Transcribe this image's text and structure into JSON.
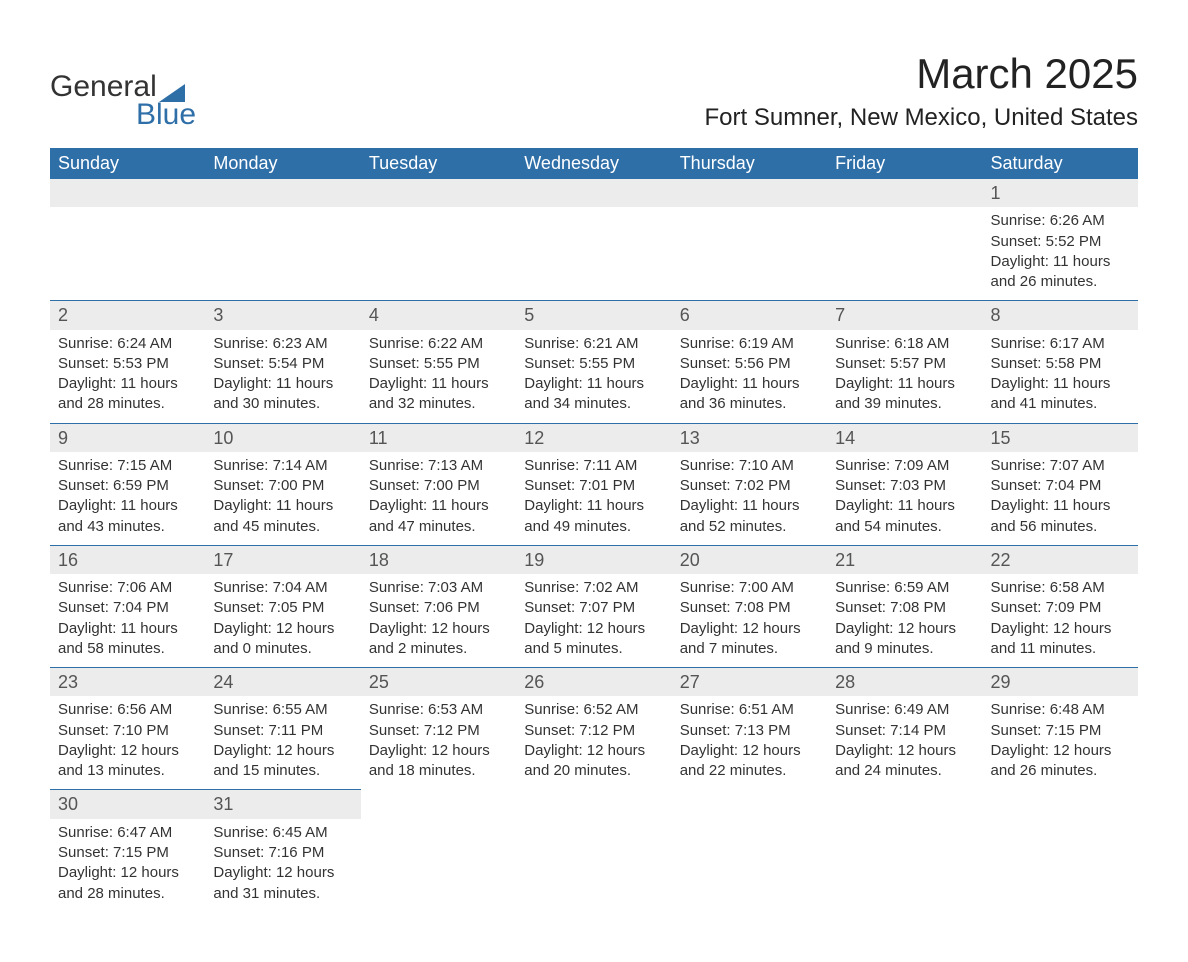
{
  "brand": {
    "name_part1": "General",
    "name_part2": "Blue",
    "accent_color": "#2f6fa8"
  },
  "title": "March 2025",
  "location": "Fort Sumner, New Mexico, United States",
  "weekdays": [
    "Sunday",
    "Monday",
    "Tuesday",
    "Wednesday",
    "Thursday",
    "Friday",
    "Saturday"
  ],
  "colors": {
    "header_bg": "#2f6fa8",
    "header_text": "#ffffff",
    "daynum_bg": "#ececec",
    "row_separator": "#2f6fa8",
    "body_text": "#333333",
    "background": "#ffffff"
  },
  "fonts": {
    "title_size_pt": 32,
    "location_size_pt": 18,
    "weekday_size_pt": 14,
    "cell_size_pt": 11
  },
  "weeks": [
    [
      null,
      null,
      null,
      null,
      null,
      null,
      {
        "d": "1",
        "sr": "Sunrise: 6:26 AM",
        "ss": "Sunset: 5:52 PM",
        "dl1": "Daylight: 11 hours",
        "dl2": "and 26 minutes."
      }
    ],
    [
      {
        "d": "2",
        "sr": "Sunrise: 6:24 AM",
        "ss": "Sunset: 5:53 PM",
        "dl1": "Daylight: 11 hours",
        "dl2": "and 28 minutes."
      },
      {
        "d": "3",
        "sr": "Sunrise: 6:23 AM",
        "ss": "Sunset: 5:54 PM",
        "dl1": "Daylight: 11 hours",
        "dl2": "and 30 minutes."
      },
      {
        "d": "4",
        "sr": "Sunrise: 6:22 AM",
        "ss": "Sunset: 5:55 PM",
        "dl1": "Daylight: 11 hours",
        "dl2": "and 32 minutes."
      },
      {
        "d": "5",
        "sr": "Sunrise: 6:21 AM",
        "ss": "Sunset: 5:55 PM",
        "dl1": "Daylight: 11 hours",
        "dl2": "and 34 minutes."
      },
      {
        "d": "6",
        "sr": "Sunrise: 6:19 AM",
        "ss": "Sunset: 5:56 PM",
        "dl1": "Daylight: 11 hours",
        "dl2": "and 36 minutes."
      },
      {
        "d": "7",
        "sr": "Sunrise: 6:18 AM",
        "ss": "Sunset: 5:57 PM",
        "dl1": "Daylight: 11 hours",
        "dl2": "and 39 minutes."
      },
      {
        "d": "8",
        "sr": "Sunrise: 6:17 AM",
        "ss": "Sunset: 5:58 PM",
        "dl1": "Daylight: 11 hours",
        "dl2": "and 41 minutes."
      }
    ],
    [
      {
        "d": "9",
        "sr": "Sunrise: 7:15 AM",
        "ss": "Sunset: 6:59 PM",
        "dl1": "Daylight: 11 hours",
        "dl2": "and 43 minutes."
      },
      {
        "d": "10",
        "sr": "Sunrise: 7:14 AM",
        "ss": "Sunset: 7:00 PM",
        "dl1": "Daylight: 11 hours",
        "dl2": "and 45 minutes."
      },
      {
        "d": "11",
        "sr": "Sunrise: 7:13 AM",
        "ss": "Sunset: 7:00 PM",
        "dl1": "Daylight: 11 hours",
        "dl2": "and 47 minutes."
      },
      {
        "d": "12",
        "sr": "Sunrise: 7:11 AM",
        "ss": "Sunset: 7:01 PM",
        "dl1": "Daylight: 11 hours",
        "dl2": "and 49 minutes."
      },
      {
        "d": "13",
        "sr": "Sunrise: 7:10 AM",
        "ss": "Sunset: 7:02 PM",
        "dl1": "Daylight: 11 hours",
        "dl2": "and 52 minutes."
      },
      {
        "d": "14",
        "sr": "Sunrise: 7:09 AM",
        "ss": "Sunset: 7:03 PM",
        "dl1": "Daylight: 11 hours",
        "dl2": "and 54 minutes."
      },
      {
        "d": "15",
        "sr": "Sunrise: 7:07 AM",
        "ss": "Sunset: 7:04 PM",
        "dl1": "Daylight: 11 hours",
        "dl2": "and 56 minutes."
      }
    ],
    [
      {
        "d": "16",
        "sr": "Sunrise: 7:06 AM",
        "ss": "Sunset: 7:04 PM",
        "dl1": "Daylight: 11 hours",
        "dl2": "and 58 minutes."
      },
      {
        "d": "17",
        "sr": "Sunrise: 7:04 AM",
        "ss": "Sunset: 7:05 PM",
        "dl1": "Daylight: 12 hours",
        "dl2": "and 0 minutes."
      },
      {
        "d": "18",
        "sr": "Sunrise: 7:03 AM",
        "ss": "Sunset: 7:06 PM",
        "dl1": "Daylight: 12 hours",
        "dl2": "and 2 minutes."
      },
      {
        "d": "19",
        "sr": "Sunrise: 7:02 AM",
        "ss": "Sunset: 7:07 PM",
        "dl1": "Daylight: 12 hours",
        "dl2": "and 5 minutes."
      },
      {
        "d": "20",
        "sr": "Sunrise: 7:00 AM",
        "ss": "Sunset: 7:08 PM",
        "dl1": "Daylight: 12 hours",
        "dl2": "and 7 minutes."
      },
      {
        "d": "21",
        "sr": "Sunrise: 6:59 AM",
        "ss": "Sunset: 7:08 PM",
        "dl1": "Daylight: 12 hours",
        "dl2": "and 9 minutes."
      },
      {
        "d": "22",
        "sr": "Sunrise: 6:58 AM",
        "ss": "Sunset: 7:09 PM",
        "dl1": "Daylight: 12 hours",
        "dl2": "and 11 minutes."
      }
    ],
    [
      {
        "d": "23",
        "sr": "Sunrise: 6:56 AM",
        "ss": "Sunset: 7:10 PM",
        "dl1": "Daylight: 12 hours",
        "dl2": "and 13 minutes."
      },
      {
        "d": "24",
        "sr": "Sunrise: 6:55 AM",
        "ss": "Sunset: 7:11 PM",
        "dl1": "Daylight: 12 hours",
        "dl2": "and 15 minutes."
      },
      {
        "d": "25",
        "sr": "Sunrise: 6:53 AM",
        "ss": "Sunset: 7:12 PM",
        "dl1": "Daylight: 12 hours",
        "dl2": "and 18 minutes."
      },
      {
        "d": "26",
        "sr": "Sunrise: 6:52 AM",
        "ss": "Sunset: 7:12 PM",
        "dl1": "Daylight: 12 hours",
        "dl2": "and 20 minutes."
      },
      {
        "d": "27",
        "sr": "Sunrise: 6:51 AM",
        "ss": "Sunset: 7:13 PM",
        "dl1": "Daylight: 12 hours",
        "dl2": "and 22 minutes."
      },
      {
        "d": "28",
        "sr": "Sunrise: 6:49 AM",
        "ss": "Sunset: 7:14 PM",
        "dl1": "Daylight: 12 hours",
        "dl2": "and 24 minutes."
      },
      {
        "d": "29",
        "sr": "Sunrise: 6:48 AM",
        "ss": "Sunset: 7:15 PM",
        "dl1": "Daylight: 12 hours",
        "dl2": "and 26 minutes."
      }
    ],
    [
      {
        "d": "30",
        "sr": "Sunrise: 6:47 AM",
        "ss": "Sunset: 7:15 PM",
        "dl1": "Daylight: 12 hours",
        "dl2": "and 28 minutes."
      },
      {
        "d": "31",
        "sr": "Sunrise: 6:45 AM",
        "ss": "Sunset: 7:16 PM",
        "dl1": "Daylight: 12 hours",
        "dl2": "and 31 minutes."
      },
      null,
      null,
      null,
      null,
      null
    ]
  ]
}
